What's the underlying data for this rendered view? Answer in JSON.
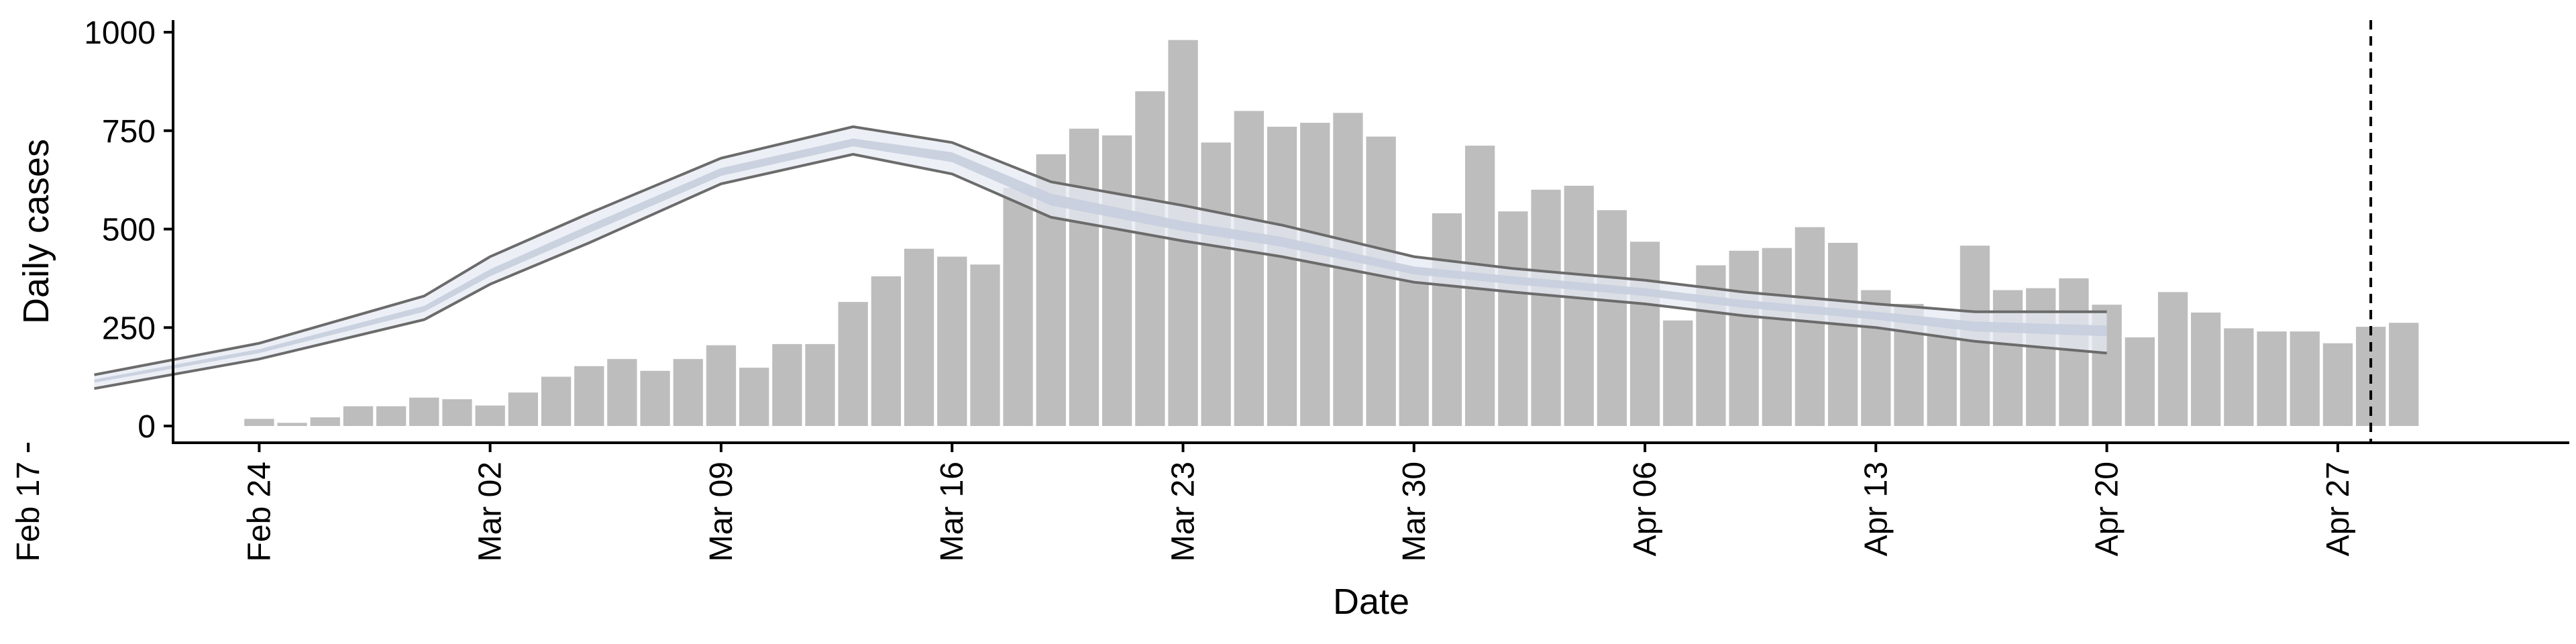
{
  "chart_data": {
    "type": "bar",
    "xlabel": "Date",
    "ylabel": "Daily cases",
    "ylim": [
      0,
      1000
    ],
    "yticks": [
      0,
      250,
      500,
      750,
      1000
    ],
    "x_start": "2020-02-17",
    "x_end": "2020-05-03",
    "xticks": [
      {
        "date": "2020-02-17",
        "label": "Feb 17"
      },
      {
        "date": "2020-02-24",
        "label": "Feb 24"
      },
      {
        "date": "2020-03-02",
        "label": "Mar 02"
      },
      {
        "date": "2020-03-09",
        "label": "Mar 09"
      },
      {
        "date": "2020-03-16",
        "label": "Mar 16"
      },
      {
        "date": "2020-03-23",
        "label": "Mar 23"
      },
      {
        "date": "2020-03-30",
        "label": "Mar 30"
      },
      {
        "date": "2020-04-06",
        "label": "Apr 06"
      },
      {
        "date": "2020-04-13",
        "label": "Apr 13"
      },
      {
        "date": "2020-04-20",
        "label": "Apr 20"
      },
      {
        "date": "2020-04-27",
        "label": "Apr 27"
      }
    ],
    "grid": false,
    "bar_color": "#bdbdbd",
    "band_outer_color": "#e6e9f2",
    "band_inner_color": "#c6cede",
    "band_edge_color": "#6b6b6b",
    "vline_date": "2020-04-28",
    "bars": {
      "start_date": "2020-02-24",
      "values": [
        18,
        8,
        22,
        50,
        50,
        72,
        68,
        52,
        85,
        125,
        152,
        170,
        140,
        170,
        205,
        148,
        208,
        208,
        315,
        380,
        450,
        430,
        410,
        605,
        690,
        755,
        738,
        850,
        980,
        720,
        800,
        760,
        770,
        795,
        735,
        402,
        540,
        712,
        545,
        600,
        610,
        548,
        468,
        268,
        408,
        445,
        452,
        505,
        465,
        345,
        310,
        265,
        458,
        345,
        350,
        375,
        308,
        225,
        340,
        288,
        248,
        240,
        240,
        210,
        252,
        262
      ]
    },
    "band": {
      "dates": [
        "2020-02-19",
        "2020-02-24",
        "2020-02-29",
        "2020-03-02",
        "2020-03-05",
        "2020-03-09",
        "2020-03-13",
        "2020-03-16",
        "2020-03-19",
        "2020-03-23",
        "2020-03-26",
        "2020-03-30",
        "2020-04-02",
        "2020-04-06",
        "2020-04-09",
        "2020-04-13",
        "2020-04-16",
        "2020-04-20"
      ],
      "upper": [
        130,
        210,
        330,
        430,
        540,
        680,
        760,
        720,
        620,
        560,
        510,
        430,
        400,
        370,
        340,
        310,
        290,
        290
      ],
      "mid_upper": [
        118,
        195,
        305,
        398,
        510,
        655,
        730,
        695,
        590,
        520,
        480,
        405,
        380,
        350,
        320,
        290,
        265,
        255
      ],
      "mid_lower": [
        110,
        185,
        290,
        380,
        490,
        635,
        710,
        670,
        560,
        495,
        455,
        385,
        360,
        330,
        300,
        270,
        240,
        228
      ],
      "lower": [
        95,
        170,
        270,
        360,
        465,
        615,
        690,
        640,
        530,
        470,
        430,
        365,
        340,
        310,
        280,
        250,
        215,
        185
      ]
    }
  }
}
